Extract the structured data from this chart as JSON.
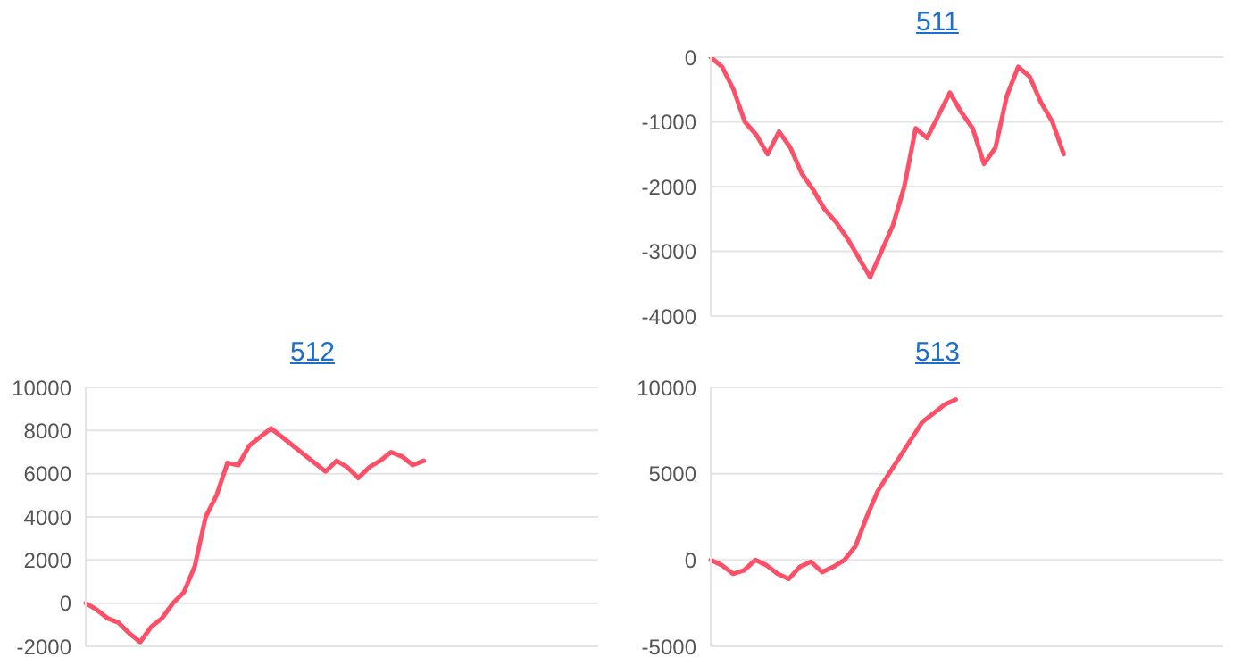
{
  "chart_data": [
    {
      "type": "line",
      "title": "511",
      "color": "#fb5068",
      "grid": "y",
      "tick_labels": "y",
      "ylim": [
        -4000,
        0
      ],
      "yticks": [
        -4000,
        -3000,
        -2000,
        -1000,
        0
      ],
      "categories": [
        null,
        null,
        null,
        null,
        null,
        null,
        null,
        null,
        null,
        null,
        null,
        null,
        null,
        null,
        null,
        null,
        null,
        null,
        null,
        null,
        null,
        null,
        null,
        null,
        null,
        null,
        null,
        null,
        null,
        null,
        null,
        null,
        null,
        null,
        null,
        null,
        null,
        null,
        null,
        null,
        null,
        null,
        null,
        null,
        null,
        null
      ],
      "values": [
        0,
        -150,
        -500,
        -1000,
        -1200,
        -1500,
        -1150,
        -1400,
        -1800,
        -2050,
        -2350,
        -2550,
        -2800,
        -3100,
        -3400,
        -3000,
        -2600,
        -2000,
        -1100,
        -1250,
        -900,
        -550,
        -850,
        -1100,
        -1650,
        -1400,
        -600,
        -150,
        -300,
        -700,
        -1000,
        -1500,
        null,
        null,
        null,
        null,
        null,
        null,
        null,
        null,
        null,
        null,
        null,
        null,
        null,
        null
      ]
    },
    {
      "type": "line",
      "title": "512",
      "color": "#fb5068",
      "grid": "y",
      "tick_labels": "y",
      "ylim": [
        -2000,
        10000
      ],
      "yticks": [
        -2000,
        0,
        2000,
        4000,
        6000,
        8000,
        10000
      ],
      "categories": [
        null,
        null,
        null,
        null,
        null,
        null,
        null,
        null,
        null,
        null,
        null,
        null,
        null,
        null,
        null,
        null,
        null,
        null,
        null,
        null,
        null,
        null,
        null,
        null,
        null,
        null,
        null,
        null,
        null,
        null,
        null,
        null,
        null,
        null,
        null,
        null,
        null,
        null,
        null,
        null,
        null,
        null,
        null,
        null,
        null,
        null,
        null,
        null
      ],
      "values": [
        0,
        -300,
        -700,
        -900,
        -1400,
        -1800,
        -1100,
        -700,
        0,
        500,
        1700,
        4000,
        5000,
        6500,
        6400,
        7300,
        7700,
        8100,
        7700,
        7300,
        6900,
        6500,
        6100,
        6600,
        6300,
        5800,
        6300,
        6600,
        7000,
        6800,
        6400,
        6600,
        null,
        null,
        null,
        null,
        null,
        null,
        null,
        null,
        null,
        null,
        null,
        null,
        null,
        null,
        null,
        null
      ]
    },
    {
      "type": "line",
      "title": "513",
      "color": "#fb5068",
      "grid": "y",
      "tick_labels": "y",
      "ylim": [
        -5000,
        10000
      ],
      "yticks": [
        -5000,
        0,
        5000,
        10000
      ],
      "categories": [
        null,
        null,
        null,
        null,
        null,
        null,
        null,
        null,
        null,
        null,
        null,
        null,
        null,
        null,
        null,
        null,
        null,
        null,
        null,
        null,
        null,
        null,
        null,
        null,
        null,
        null,
        null,
        null,
        null,
        null,
        null,
        null,
        null,
        null,
        null,
        null,
        null,
        null,
        null,
        null,
        null,
        null,
        null,
        null,
        null,
        null,
        null
      ],
      "values": [
        0,
        -300,
        -800,
        -600,
        0,
        -300,
        -800,
        -1100,
        -400,
        -100,
        -700,
        -400,
        0,
        800,
        2500,
        4000,
        5000,
        6000,
        7000,
        8000,
        8500,
        9000,
        9300,
        null,
        null,
        null,
        null,
        null,
        null,
        null,
        null,
        null,
        null,
        null,
        null,
        null,
        null,
        null,
        null,
        null,
        null,
        null,
        null,
        null,
        null,
        null,
        null
      ]
    }
  ]
}
